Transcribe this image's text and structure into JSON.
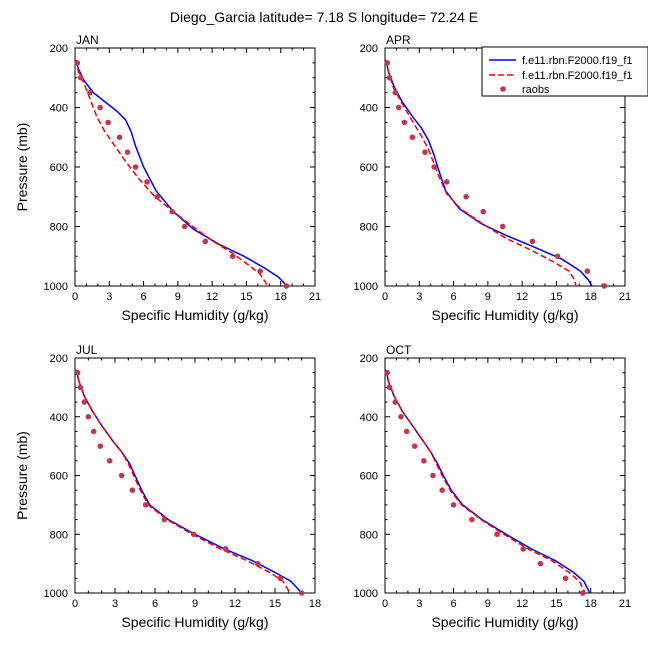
{
  "figure_title": "Diego_Garcia  latitude= 7.18 S longitude= 72.24 E",
  "legend": {
    "entries": [
      {
        "label": "f.e11.rbn.F2000.f19_f1",
        "color": "#0000ff",
        "style": "solid"
      },
      {
        "label": "f.e11.rbn.F2000.f19_f1",
        "color": "#ff0000",
        "style": "dashed"
      },
      {
        "label": "raobs",
        "color": "#c03850",
        "style": "marker"
      }
    ]
  },
  "chart_data": [
    {
      "type": "line",
      "title": "JAN",
      "xlabel": "Specific Humidity (g/kg)",
      "ylabel": "Pressure (mb)",
      "xlim": [
        0,
        21
      ],
      "ylim": [
        1000,
        200
      ],
      "xticks": [
        0,
        3,
        6,
        9,
        12,
        15,
        18,
        21
      ],
      "yticks": [
        200,
        400,
        600,
        800,
        1000
      ],
      "grid": false,
      "series": [
        {
          "name": "f.e11.rbn.F2000.f19_f1",
          "color": "#0000ff",
          "style": "solid",
          "x": [
            0.1,
            0.3,
            0.8,
            1.6,
            2.6,
            3.6,
            4.4,
            4.9,
            5.3,
            6.0,
            7.1,
            8.6,
            10.4,
            12.6,
            14.8,
            16.6,
            17.8,
            18.3,
            18.4
          ],
          "y": [
            240,
            270,
            310,
            350,
            380,
            410,
            440,
            480,
            530,
            600,
            680,
            750,
            810,
            860,
            900,
            940,
            970,
            990,
            1000
          ]
        },
        {
          "name": "f.e11.rbn.F2000.f19_f1",
          "color": "#ff0000",
          "style": "dashed",
          "x": [
            0.1,
            0.3,
            0.8,
            1.3,
            1.9,
            2.6,
            3.5,
            4.4,
            5.6,
            7.0,
            8.6,
            10.3,
            12.1,
            13.8,
            15.2,
            16.2,
            16.7,
            16.8
          ],
          "y": [
            240,
            280,
            320,
            370,
            430,
            480,
            530,
            580,
            640,
            700,
            750,
            800,
            850,
            890,
            930,
            960,
            990,
            1000
          ]
        },
        {
          "name": "raobs",
          "color": "#c03850",
          "style": "marker",
          "x": [
            0.2,
            0.5,
            1.3,
            2.2,
            2.9,
            3.9,
            4.6,
            5.3,
            6.3,
            7.2,
            8.5,
            9.6,
            11.4,
            13.8,
            16.2,
            18.5
          ],
          "y": [
            250,
            300,
            350,
            400,
            450,
            500,
            550,
            600,
            650,
            700,
            750,
            800,
            850,
            900,
            950,
            1000
          ]
        }
      ]
    },
    {
      "type": "line",
      "title": "APR",
      "xlabel": "Specific Humidity (g/kg)",
      "ylabel": "",
      "xlim": [
        0,
        21
      ],
      "ylim": [
        1000,
        200
      ],
      "xticks": [
        0,
        3,
        6,
        9,
        12,
        15,
        18,
        21
      ],
      "yticks": [
        200,
        400,
        600,
        800,
        1000
      ],
      "grid": false,
      "series": [
        {
          "name": "f.e11.rbn.F2000.f19_f1",
          "color": "#0000ff",
          "style": "solid",
          "x": [
            0.1,
            0.3,
            0.8,
            1.5,
            2.4,
            3.2,
            3.8,
            4.3,
            4.6,
            5.3,
            6.5,
            8.4,
            10.6,
            13.1,
            15.5,
            17.1,
            17.8,
            18.1
          ],
          "y": [
            240,
            280,
            330,
            380,
            430,
            470,
            510,
            560,
            600,
            680,
            740,
            790,
            830,
            870,
            910,
            950,
            980,
            1000
          ]
        },
        {
          "name": "f.e11.rbn.F2000.f19_f1",
          "color": "#ff0000",
          "style": "dashed",
          "x": [
            0.1,
            0.3,
            0.7,
            1.4,
            2.3,
            3.1,
            3.8,
            4.3,
            4.7,
            5.4,
            6.6,
            8.5,
            10.6,
            12.8,
            14.8,
            16.1,
            16.6,
            16.7
          ],
          "y": [
            240,
            280,
            330,
            380,
            440,
            490,
            540,
            590,
            630,
            690,
            740,
            790,
            840,
            880,
            920,
            950,
            980,
            1000
          ]
        },
        {
          "name": "raobs",
          "color": "#c03850",
          "style": "marker",
          "x": [
            0.2,
            0.4,
            0.9,
            1.2,
            1.7,
            2.4,
            3.5,
            4.3,
            5.4,
            7.1,
            8.6,
            10.3,
            12.9,
            15.1,
            17.7,
            19.2
          ],
          "y": [
            250,
            300,
            350,
            400,
            450,
            500,
            550,
            600,
            650,
            700,
            750,
            800,
            850,
            900,
            950,
            1000
          ]
        }
      ]
    },
    {
      "type": "line",
      "title": "JUL",
      "xlabel": "Specific Humidity (g/kg)",
      "ylabel": "Pressure (mb)",
      "xlim": [
        0,
        18
      ],
      "ylim": [
        1000,
        200
      ],
      "xticks": [
        0,
        3,
        6,
        9,
        12,
        15,
        18
      ],
      "yticks": [
        200,
        400,
        600,
        800,
        1000
      ],
      "grid": false,
      "series": [
        {
          "name": "f.e11.rbn.F2000.f19_f1",
          "color": "#0000ff",
          "style": "solid",
          "x": [
            0.1,
            0.3,
            0.7,
            1.3,
            2.0,
            2.8,
            3.5,
            4.1,
            4.5,
            5.0,
            5.6,
            7.0,
            9.0,
            11.2,
            13.3,
            15.0,
            16.2,
            16.8,
            17.0
          ],
          "y": [
            240,
            280,
            330,
            380,
            430,
            480,
            520,
            560,
            600,
            650,
            700,
            750,
            800,
            850,
            890,
            930,
            960,
            990,
            1000
          ]
        },
        {
          "name": "f.e11.rbn.F2000.f19_f1",
          "color": "#ff0000",
          "style": "dashed",
          "x": [
            0.1,
            0.3,
            0.7,
            1.3,
            2.0,
            2.8,
            3.5,
            4.0,
            4.4,
            4.9,
            5.5,
            6.9,
            8.8,
            10.9,
            12.9,
            14.6,
            15.6,
            16.0,
            16.1
          ],
          "y": [
            240,
            280,
            330,
            380,
            430,
            480,
            520,
            560,
            600,
            650,
            700,
            750,
            800,
            850,
            890,
            930,
            960,
            990,
            1000
          ]
        },
        {
          "name": "raobs",
          "color": "#c03850",
          "style": "marker",
          "x": [
            0.2,
            0.4,
            0.7,
            1.0,
            1.4,
            1.9,
            2.6,
            3.5,
            4.3,
            5.3,
            6.7,
            8.9,
            11.3,
            13.7,
            15.4,
            17.0
          ],
          "y": [
            250,
            300,
            350,
            400,
            450,
            500,
            550,
            600,
            650,
            700,
            750,
            800,
            850,
            900,
            950,
            1000
          ]
        }
      ]
    },
    {
      "type": "line",
      "title": "OCT",
      "xlabel": "Specific Humidity (g/kg)",
      "ylabel": "",
      "xlim": [
        0,
        21
      ],
      "ylim": [
        1000,
        200
      ],
      "xticks": [
        0,
        3,
        6,
        9,
        12,
        15,
        18,
        21
      ],
      "yticks": [
        200,
        400,
        600,
        800,
        1000
      ],
      "grid": false,
      "series": [
        {
          "name": "f.e11.rbn.F2000.f19_f1",
          "color": "#0000ff",
          "style": "solid",
          "x": [
            0.1,
            0.3,
            0.8,
            1.5,
            2.4,
            3.3,
            4.0,
            4.6,
            5.1,
            5.8,
            6.8,
            8.5,
            10.6,
            12.8,
            14.9,
            16.5,
            17.4,
            17.8,
            17.9
          ],
          "y": [
            240,
            280,
            330,
            380,
            430,
            480,
            520,
            560,
            600,
            650,
            700,
            750,
            800,
            850,
            890,
            930,
            960,
            990,
            1000
          ]
        },
        {
          "name": "f.e11.rbn.F2000.f19_f1",
          "color": "#ff0000",
          "style": "dashed",
          "x": [
            0.1,
            0.3,
            0.8,
            1.5,
            2.4,
            3.3,
            4.0,
            4.5,
            5.0,
            5.7,
            6.7,
            8.4,
            10.4,
            12.5,
            14.6,
            16.1,
            17.0,
            17.4,
            17.5
          ],
          "y": [
            240,
            280,
            330,
            380,
            430,
            480,
            520,
            560,
            600,
            650,
            700,
            750,
            800,
            850,
            890,
            930,
            960,
            990,
            1000
          ]
        },
        {
          "name": "raobs",
          "color": "#c03850",
          "style": "marker",
          "x": [
            0.2,
            0.4,
            0.9,
            1.4,
            1.9,
            2.6,
            3.4,
            4.2,
            5.0,
            6.0,
            7.6,
            9.8,
            12.1,
            13.6,
            15.8,
            17.3
          ],
          "y": [
            250,
            300,
            350,
            400,
            450,
            500,
            550,
            600,
            650,
            700,
            750,
            800,
            850,
            900,
            950,
            1000
          ]
        }
      ]
    }
  ]
}
